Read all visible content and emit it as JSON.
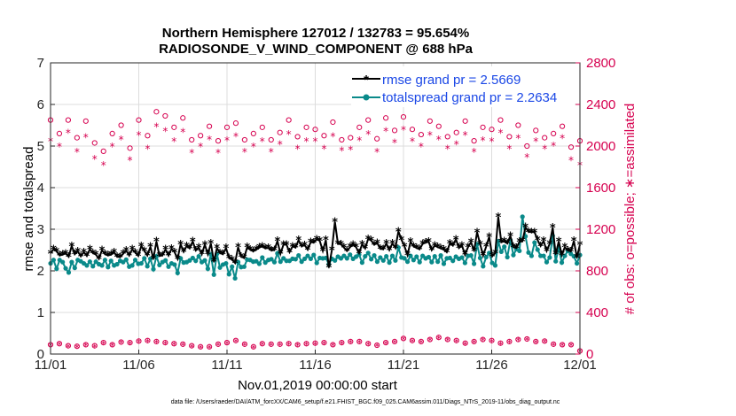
{
  "chart_data": {
    "type": "line",
    "title_line1": "Northern Hemisphere 127012 / 132783 = 95.654%",
    "title_line2": "RADIOSONDE_V_WIND_COMPONENT @ 688 hPa",
    "xlabel": "Nov.01,2019 00:00:00 start",
    "ylabel_left": "rmse and totalspread",
    "ylabel_right": "# of obs: o=possible; ∗=assimilated",
    "footnote": "data file: /Users/raeder/DAI/ATM_forcXX/CAM6_setup/f.e21.FHIST_BGC.f09_025.CAM6assim.011/Diags_NTrS_2019-11/obs_diag_output.nc",
    "x_range": [
      0,
      30
    ],
    "x_tick_values": [
      0,
      5,
      10,
      15,
      20,
      25,
      30
    ],
    "x_tick_labels": [
      "11/01",
      "11/06",
      "11/11",
      "11/16",
      "11/21",
      "11/26",
      "12/01"
    ],
    "ylim_left": [
      0,
      7
    ],
    "y_left_ticks": [
      "0",
      "1",
      "2",
      "3",
      "4",
      "5",
      "6",
      "7"
    ],
    "ylim_right": [
      0,
      2800
    ],
    "y_right_ticks": [
      "0",
      "400",
      "800",
      "1200",
      "1600",
      "2000",
      "2400",
      "2800"
    ],
    "colors": {
      "rmse": "#000000",
      "spread": "#0a8a8a",
      "obs": "#d6004f",
      "legend_text": "#1a47e6"
    },
    "legend": [
      {
        "name": "rmse",
        "label": "rmse grand pr = 2.5669"
      },
      {
        "name": "spread",
        "label": "totalspread grand pr = 2.2634"
      }
    ],
    "rmse": [
      2.42,
      2.52,
      2.47,
      2.37,
      2.39,
      2.42,
      2.34,
      2.6,
      2.4,
      2.47,
      2.35,
      2.45,
      2.36,
      2.52,
      2.43,
      2.39,
      2.29,
      2.5,
      2.4,
      2.37,
      2.39,
      2.45,
      2.34,
      2.33,
      2.41,
      2.49,
      2.37,
      2.52,
      2.44,
      2.36,
      2.6,
      2.48,
      2.37,
      2.58,
      2.29,
      2.71,
      2.36,
      2.37,
      2.52,
      2.37,
      2.53,
      2.45,
      2.29,
      2.64,
      2.46,
      2.6,
      2.54,
      2.71,
      2.49,
      2.56,
      2.4,
      2.63,
      2.4,
      2.66,
      2.22,
      2.55,
      2.43,
      2.4,
      2.55,
      2.31,
      2.27,
      2.19,
      2.57,
      2.34,
      2.31,
      2.57,
      2.51,
      2.47,
      2.51,
      2.56,
      2.59,
      2.54,
      2.55,
      2.49,
      2.5,
      2.72,
      2.41,
      2.63,
      2.63,
      2.45,
      2.59,
      2.56,
      2.74,
      2.59,
      2.62,
      2.51,
      2.69,
      2.68,
      2.76,
      2.72,
      2.48,
      2.74,
      2.08,
      2.5,
      3.18,
      2.65,
      2.64,
      2.56,
      2.48,
      2.57,
      2.63,
      2.57,
      2.43,
      2.64,
      2.54,
      2.77,
      2.73,
      2.63,
      2.67,
      2.53,
      2.52,
      2.66,
      2.5,
      2.66,
      2.55,
      2.95,
      2.75,
      2.59,
      2.38,
      2.7,
      2.59,
      2.55,
      2.52,
      2.65,
      2.68,
      2.7,
      2.5,
      2.61,
      2.57,
      2.54,
      2.51,
      2.45,
      2.66,
      2.61,
      2.76,
      2.55,
      2.61,
      2.39,
      2.57,
      2.69,
      2.48,
      2.93,
      2.64,
      2.37,
      2.58,
      2.82,
      2.35,
      2.43,
      3.3,
      2.69,
      2.71,
      2.66,
      2.84,
      2.57,
      2.55,
      2.7,
      2.71,
      3.05,
      2.94,
      2.93,
      2.93,
      2.74,
      2.6,
      2.72,
      2.48,
      2.65,
      3.04,
      2.4,
      2.71,
      2.38,
      2.57,
      2.49,
      2.47,
      2.72,
      2.32,
      2.63
    ],
    "spread": [
      2.18,
      2.26,
      2.05,
      2.26,
      2.21,
      2.06,
      1.96,
      2.21,
      2.07,
      2.26,
      2.23,
      2.18,
      2.13,
      2.22,
      2.11,
      2.22,
      2.16,
      2.13,
      2.26,
      2.09,
      2.24,
      2.13,
      2.16,
      2.24,
      2.21,
      2.27,
      2.1,
      2.13,
      2.26,
      2.17,
      2.18,
      2.3,
      2.11,
      2.29,
      2.04,
      2.35,
      2.14,
      2.21,
      2.25,
      2.1,
      2.18,
      2.15,
      1.95,
      2.3,
      2.2,
      2.21,
      2.25,
      2.31,
      2.24,
      2.35,
      2.21,
      2.25,
      2.05,
      2.4,
      1.91,
      2.41,
      2.08,
      2.15,
      2.18,
      1.92,
      2.1,
      1.82,
      2.21,
      2.09,
      2.1,
      2.27,
      2.26,
      2.22,
      2.23,
      2.17,
      2.32,
      2.2,
      2.26,
      2.28,
      2.21,
      2.42,
      2.22,
      2.3,
      2.24,
      2.24,
      2.29,
      2.28,
      2.37,
      2.22,
      2.29,
      2.36,
      2.29,
      2.38,
      2.19,
      2.31,
      2.3,
      2.31,
      2.16,
      2.29,
      2.25,
      2.34,
      2.3,
      2.36,
      2.3,
      2.39,
      2.29,
      2.34,
      2.39,
      2.2,
      2.35,
      2.43,
      2.28,
      2.37,
      2.22,
      2.32,
      2.25,
      2.35,
      2.2,
      2.36,
      2.25,
      2.56,
      2.32,
      2.3,
      2.22,
      2.36,
      2.26,
      2.34,
      2.21,
      2.36,
      2.3,
      2.33,
      2.21,
      2.35,
      2.22,
      2.37,
      2.17,
      2.3,
      2.31,
      2.24,
      2.34,
      2.29,
      2.32,
      2.19,
      2.36,
      2.37,
      2.17,
      2.64,
      2.31,
      2.11,
      2.33,
      2.43,
      2.19,
      2.13,
      2.71,
      2.46,
      2.58,
      2.33,
      2.74,
      2.38,
      2.52,
      2.48,
      3.3,
      2.83,
      2.44,
      2.36,
      2.68,
      2.51,
      2.36,
      2.36,
      2.21,
      2.32,
      2.84,
      2.23,
      2.56,
      2.2,
      2.36,
      2.48,
      2.41,
      2.35,
      2.18,
      2.38
    ],
    "obs_possible_x": [
      0,
      0.5,
      1,
      1.5,
      2,
      2.5,
      3,
      3.5,
      4,
      4.5,
      5,
      5.5,
      6,
      6.5,
      7,
      7.5,
      8,
      8.5,
      9,
      9.5,
      10,
      10.5,
      11,
      11.5,
      12,
      12.5,
      13,
      13.5,
      14,
      14.5,
      15,
      15.5,
      16,
      16.5,
      17,
      17.5,
      18,
      18.5,
      19,
      19.5,
      20,
      20.5,
      21,
      21.5,
      22,
      22.5,
      23,
      23.5,
      24,
      24.5,
      25,
      25.5,
      26,
      26.5,
      27,
      27.5,
      28,
      28.5,
      29,
      29.5,
      30
    ],
    "obs_possible_high": [
      2250,
      2120,
      2250,
      2080,
      2240,
      2030,
      1950,
      2120,
      2200,
      1980,
      2250,
      2100,
      2330,
      2290,
      2180,
      2270,
      2060,
      2100,
      2190,
      2050,
      2180,
      2220,
      2060,
      2120,
      2180,
      2060,
      2130,
      2250,
      2090,
      2180,
      2160,
      2100,
      2230,
      2060,
      2080,
      2180,
      2250,
      2070,
      2270,
      2150,
      2280,
      2160,
      2110,
      2240,
      2190,
      2090,
      2130,
      2240,
      2050,
      2180,
      2160,
      2250,
      2090,
      2200,
      2000,
      2150,
      2080,
      2120,
      2190,
      1990,
      2050
    ],
    "obs_assim_high": [
      2050,
      2000,
      2130,
      1950,
      2090,
      1880,
      1820,
      2000,
      2070,
      1870,
      2110,
      1980,
      2190,
      2150,
      2050,
      2140,
      1940,
      2000,
      2070,
      1940,
      2060,
      2100,
      1950,
      2000,
      2050,
      1950,
      2020,
      2120,
      1980,
      2050,
      2050,
      1980,
      2100,
      1960,
      1970,
      2060,
      2120,
      1950,
      2150,
      2040,
      2160,
      2050,
      2000,
      2110,
      2070,
      1980,
      2020,
      2110,
      1950,
      2060,
      2050,
      2130,
      1980,
      2080,
      1900,
      2050,
      1980,
      2010,
      2080,
      1870,
      1820
    ],
    "obs_possible_low": [
      90,
      100,
      80,
      75,
      90,
      80,
      110,
      90,
      115,
      110,
      125,
      130,
      120,
      110,
      100,
      95,
      80,
      70,
      70,
      95,
      110,
      130,
      95,
      70,
      100,
      95,
      95,
      100,
      90,
      100,
      105,
      110,
      90,
      110,
      120,
      120,
      100,
      85,
      110,
      120,
      150,
      130,
      120,
      140,
      160,
      140,
      130,
      105,
      120,
      140,
      130,
      105,
      120,
      140,
      145,
      120,
      125,
      95,
      90,
      90,
      30
    ],
    "obs_assim_low": [
      80,
      90,
      70,
      65,
      80,
      70,
      100,
      80,
      105,
      100,
      115,
      120,
      110,
      100,
      90,
      85,
      70,
      60,
      60,
      85,
      100,
      120,
      85,
      60,
      90,
      85,
      85,
      90,
      80,
      90,
      95,
      100,
      80,
      100,
      110,
      110,
      90,
      75,
      100,
      110,
      140,
      120,
      110,
      130,
      150,
      130,
      120,
      95,
      110,
      130,
      120,
      95,
      110,
      130,
      135,
      110,
      115,
      85,
      80,
      80,
      20
    ]
  }
}
